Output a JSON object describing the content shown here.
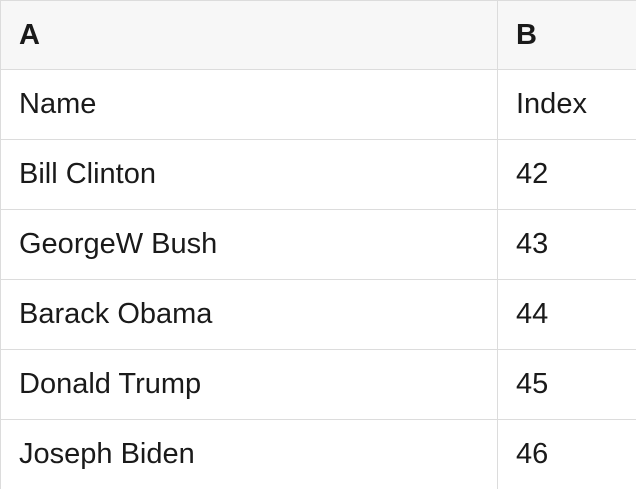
{
  "table": {
    "columns": [
      {
        "label": "A"
      },
      {
        "label": "B"
      }
    ],
    "rows": [
      [
        "Name",
        "Index"
      ],
      [
        "Bill Clinton",
        "42"
      ],
      [
        "GeorgeW Bush",
        "43"
      ],
      [
        "Barack Obama",
        "44"
      ],
      [
        "Donald Trump",
        "45"
      ],
      [
        "Joseph Biden",
        "46"
      ]
    ]
  },
  "colors": {
    "header_bg": "#f7f7f7",
    "border": "#dcdcdc",
    "text": "#1a1a1a",
    "row_bg": "#ffffff"
  }
}
